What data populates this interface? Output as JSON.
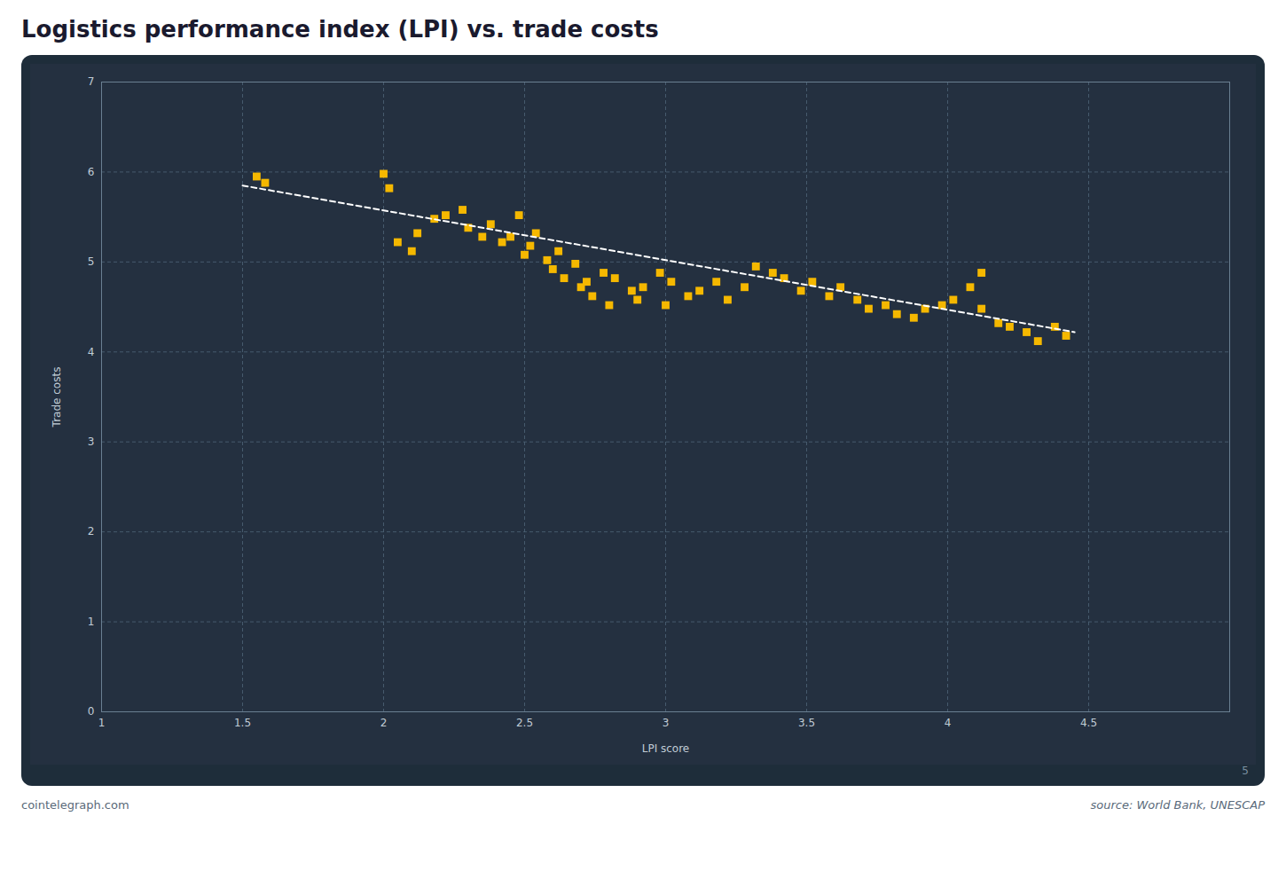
{
  "chart_data": {
    "type": "scatter",
    "title": "Logistics performance index (LPI) vs. trade costs",
    "x_label": "LPI score",
    "y_label": "Trade costs",
    "xlim": [
      1,
      5
    ],
    "ylim": [
      0,
      7
    ],
    "xticks": [
      1,
      1.5,
      2,
      2.5,
      3,
      3.5,
      4,
      4.5
    ],
    "yticks": [
      0,
      1,
      2,
      3,
      4,
      5,
      6,
      7
    ],
    "grid": true,
    "annotations": [
      "5",
      "cointelegraph.com",
      "source: World Bank, UNESCAP"
    ],
    "series": [
      {
        "type": "scatter",
        "color": "#f5b800",
        "marker": "square",
        "x": [
          1.55,
          1.58,
          2.0,
          2.02,
          2.05,
          2.1,
          2.12,
          2.18,
          2.22,
          2.28,
          2.3,
          2.35,
          2.38,
          2.42,
          2.45,
          2.48,
          2.5,
          2.52,
          2.54,
          2.58,
          2.6,
          2.62,
          2.64,
          2.68,
          2.7,
          2.72,
          2.74,
          2.78,
          2.8,
          2.82,
          2.88,
          2.9,
          2.92,
          2.98,
          3.0,
          3.02,
          3.08,
          3.12,
          3.18,
          3.22,
          3.28,
          3.32,
          3.38,
          3.42,
          3.48,
          3.52,
          3.58,
          3.62,
          3.68,
          3.72,
          3.78,
          3.82,
          3.88,
          3.92,
          3.98,
          4.02,
          4.08,
          4.12,
          4.18,
          4.22,
          4.28,
          4.32,
          4.38,
          4.42,
          4.12
        ],
        "values": [
          5.95,
          5.88,
          5.98,
          5.82,
          5.22,
          5.12,
          5.32,
          5.48,
          5.52,
          5.58,
          5.38,
          5.28,
          5.42,
          5.22,
          5.28,
          5.52,
          5.08,
          5.18,
          5.32,
          5.02,
          4.92,
          5.12,
          4.82,
          4.98,
          4.72,
          4.78,
          4.62,
          4.88,
          4.52,
          4.82,
          4.68,
          4.58,
          4.72,
          4.88,
          4.52,
          4.78,
          4.62,
          4.68,
          4.78,
          4.58,
          4.72,
          4.95,
          4.88,
          4.82,
          4.68,
          4.78,
          4.62,
          4.72,
          4.58,
          4.48,
          4.52,
          4.42,
          4.38,
          4.48,
          4.52,
          4.58,
          4.72,
          4.48,
          4.32,
          4.28,
          4.22,
          4.12,
          4.28,
          4.18,
          4.88
        ]
      },
      {
        "type": "line",
        "color": "#ffffff",
        "line_style": "dashed",
        "x": [
          1.5,
          4.45
        ],
        "values": [
          5.85,
          4.22
        ]
      }
    ]
  }
}
